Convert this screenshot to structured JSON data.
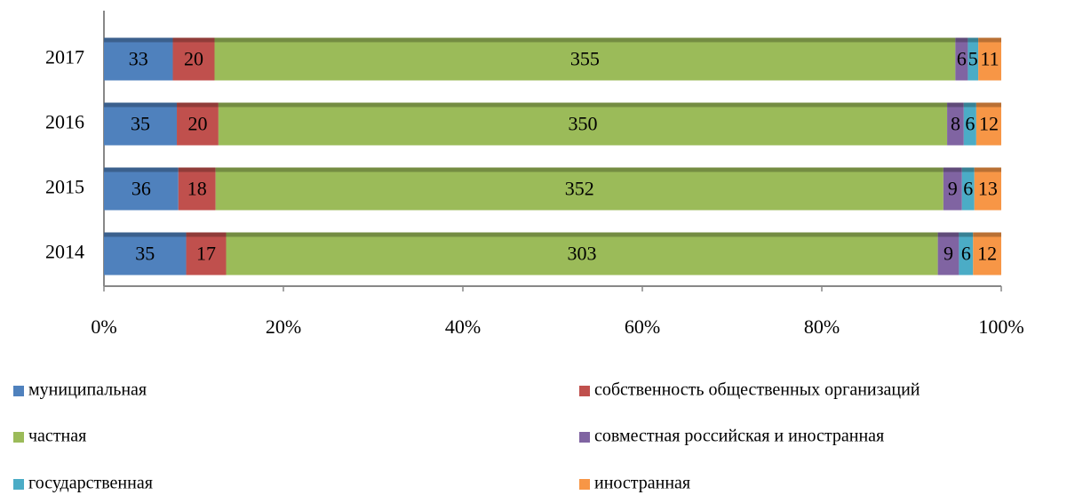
{
  "chart_data": {
    "type": "bar",
    "orientation": "horizontal",
    "stacking": "percent",
    "categories": [
      "2014",
      "2015",
      "2016",
      "2017"
    ],
    "series": [
      {
        "name": "муниципальная",
        "color": "#4f81bd",
        "values": [
          35,
          36,
          35,
          33
        ]
      },
      {
        "name": "собственность общественных организаций",
        "color": "#c0504d",
        "values": [
          17,
          18,
          20,
          20
        ]
      },
      {
        "name": "частная",
        "color": "#9bbb59",
        "values": [
          303,
          352,
          350,
          355
        ]
      },
      {
        "name": "совместная российская и иностранная",
        "color": "#8064a2",
        "values": [
          9,
          9,
          8,
          6
        ]
      },
      {
        "name": "государственная",
        "color": "#4bacc6",
        "values": [
          6,
          6,
          6,
          5
        ]
      },
      {
        "name": "иностранная",
        "color": "#f79646",
        "values": [
          12,
          13,
          12,
          11
        ]
      }
    ],
    "xlim": [
      0,
      100
    ],
    "xticks": [
      {
        "value": 0,
        "label": "0%"
      },
      {
        "value": 20,
        "label": "20%"
      },
      {
        "value": 40,
        "label": "40%"
      },
      {
        "value": 60,
        "label": "60%"
      },
      {
        "value": 80,
        "label": "80%"
      },
      {
        "value": 100,
        "label": "100%"
      }
    ],
    "grid": false,
    "legend": "bottom"
  }
}
